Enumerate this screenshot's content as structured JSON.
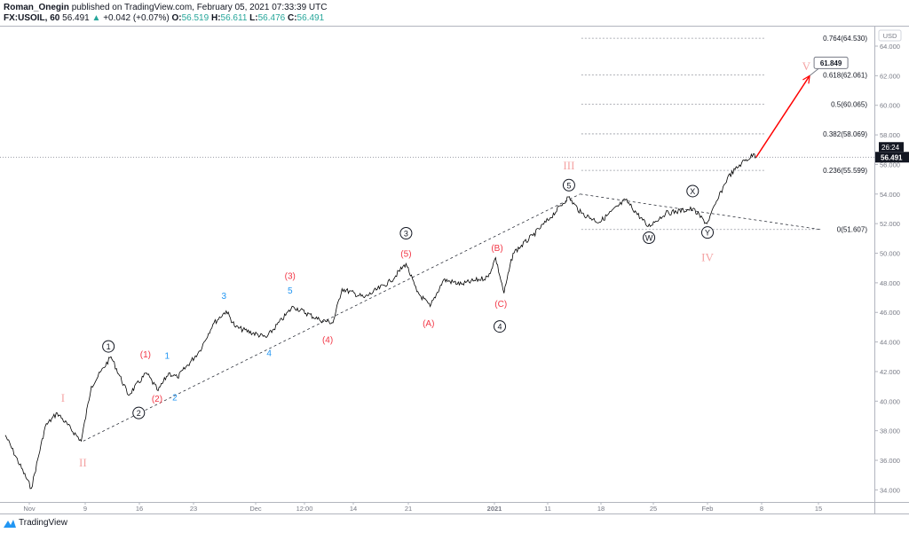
{
  "header": {
    "author": "Roman_Onegin",
    "published_text": "published on TradingView.com, February 05, 2021 07:33:39 UTC",
    "symbol": "FX:USOIL, 60",
    "last": "56.491",
    "change": "+0.042 (+0.07%)",
    "o_label": "O:",
    "o": "56.519",
    "h_label": "H:",
    "h": "56.611",
    "l_label": "L:",
    "l": "56.476",
    "c_label": "C:",
    "c": "56.491",
    "up_color": "#26a69a"
  },
  "footer": {
    "brand": "TradingView"
  },
  "chart_data": {
    "type": "line",
    "title": "",
    "currency": "USD",
    "ylim": [
      33.4,
      65.2
    ],
    "y_ticks": [
      "34.000",
      "36.000",
      "38.000",
      "40.000",
      "42.000",
      "44.000",
      "46.000",
      "48.000",
      "50.000",
      "52.000",
      "54.000",
      "56.000",
      "58.000",
      "60.000",
      "62.000",
      "64.000"
    ],
    "x_ticks": [
      {
        "label": "Nov",
        "date": "2020-11-02T00:00"
      },
      {
        "label": "9",
        "date": "2020-11-09T00:00"
      },
      {
        "label": "16",
        "date": "2020-11-16T00:00"
      },
      {
        "label": "23",
        "date": "2020-11-23T00:00"
      },
      {
        "label": "Dec",
        "date": "2020-12-01T00:00"
      },
      {
        "label": "12:00",
        "date": "2020-12-07T12:00"
      },
      {
        "label": "14",
        "date": "2020-12-14T00:00"
      },
      {
        "label": "21",
        "date": "2020-12-21T00:00"
      },
      {
        "label": "2021",
        "date": "2021-01-01T00:00"
      },
      {
        "label": "11",
        "date": "2021-01-11T00:00"
      },
      {
        "label": "18",
        "date": "2021-01-18T00:00"
      },
      {
        "label": "25",
        "date": "2021-01-25T00:00"
      },
      {
        "label": "Feb",
        "date": "2021-02-01T00:00"
      },
      {
        "label": "8",
        "date": "2021-02-08T00:00"
      },
      {
        "label": "15",
        "date": "2021-02-15T00:00"
      }
    ],
    "price_series": [
      [
        "2020-10-30T00:00",
        37.7
      ],
      [
        "2020-11-02T06:00",
        34.1
      ],
      [
        "2020-11-04T00:00",
        38.3
      ],
      [
        "2020-11-05T12:00",
        39.2
      ],
      [
        "2020-11-08T12:00",
        37.3
      ],
      [
        "2020-11-09T19:00",
        41.0
      ],
      [
        "2020-11-12T08:00",
        43.0
      ],
      [
        "2020-11-14T14:00",
        40.4
      ],
      [
        "2020-11-16T22:00",
        41.9
      ],
      [
        "2020-11-18T10:00",
        40.7
      ],
      [
        "2020-11-19T19:00",
        41.9
      ],
      [
        "2020-11-20T22:00",
        41.6
      ],
      [
        "2020-11-23T19:00",
        43.4
      ],
      [
        "2020-11-25T12:00",
        45.2
      ],
      [
        "2020-11-27T05:00",
        46.1
      ],
      [
        "2020-11-28T10:00",
        45.0
      ],
      [
        "2020-12-02T10:00",
        44.3
      ],
      [
        "2020-12-06T00:00",
        46.4
      ],
      [
        "2020-12-09T12:00",
        45.5
      ],
      [
        "2020-12-11T07:00",
        45.3
      ],
      [
        "2020-12-12T12:00",
        47.6
      ],
      [
        "2020-12-15T10:00",
        47.0
      ],
      [
        "2020-12-18T17:00",
        48.1
      ],
      [
        "2020-12-20T17:00",
        49.3
      ],
      [
        "2020-12-22T02:00",
        47.4
      ],
      [
        "2020-12-23T19:00",
        46.4
      ],
      [
        "2020-12-25T12:00",
        48.2
      ],
      [
        "2020-12-27T19:00",
        47.9
      ],
      [
        "2020-12-31T05:00",
        48.4
      ],
      [
        "2021-01-01T05:00",
        49.7
      ],
      [
        "2021-01-02T19:00",
        47.3
      ],
      [
        "2021-01-04T12:00",
        50.0
      ],
      [
        "2021-01-08T05:00",
        51.2
      ],
      [
        "2021-01-11T08:00",
        52.4
      ],
      [
        "2021-01-13T17:00",
        53.8
      ],
      [
        "2021-01-15T10:00",
        52.7
      ],
      [
        "2021-01-17T19:00",
        52.1
      ],
      [
        "2021-01-21T07:00",
        53.6
      ],
      [
        "2021-01-24T07:00",
        51.8
      ],
      [
        "2021-01-26T14:00",
        52.7
      ],
      [
        "2021-01-30T02:00",
        53.0
      ],
      [
        "2021-01-31T22:00",
        52.0
      ],
      [
        "2021-02-02T07:00",
        53.6
      ],
      [
        "2021-02-03T14:00",
        55.1
      ],
      [
        "2021-02-05T10:00",
        56.1
      ],
      [
        "2021-02-07T02:00",
        56.7
      ],
      [
        "2021-02-07T07:00",
        56.491
      ]
    ],
    "projection": {
      "from": [
        "2021-02-07T07:00",
        56.491
      ],
      "to": [
        "2021-02-13T22:00",
        62.0
      ],
      "label": "61.849",
      "color": "#ff0000"
    },
    "fib_levels": [
      {
        "label": "0.764(64.530)",
        "price": 64.53
      },
      {
        "label": "0.618(62.061)",
        "price": 62.061
      },
      {
        "label": "0.5(60.065)",
        "price": 60.065
      },
      {
        "label": "0.382(58.069)",
        "price": 58.069
      },
      {
        "label": "0.236(55.599)",
        "price": 55.599
      },
      {
        "label": "0(51.607)",
        "price": 51.607
      }
    ],
    "fib_range": {
      "start": "2021-01-15T10:00",
      "end": "2021-02-08T12:00",
      "zero_end": "2021-02-15T06:00"
    },
    "trendlines": [
      {
        "from": [
          "2020-11-08T18:00",
          37.3
        ],
        "to": [
          "2021-01-15T06:00",
          54.0
        ]
      },
      {
        "from": [
          "2021-01-15T06:00",
          54.0
        ],
        "to": [
          "2021-02-15T06:00",
          51.6
        ]
      }
    ],
    "current_price": {
      "label": "56.491",
      "price": 56.491,
      "countdown": "26:24"
    },
    "wave_labels": [
      {
        "label": "I",
        "style": "roman",
        "date": "2020-11-06T05:00",
        "price": 40.3
      },
      {
        "label": "II",
        "style": "roman",
        "date": "2020-11-08T17:00",
        "price": 35.9
      },
      {
        "label": "III",
        "style": "roman",
        "date": "2021-01-13T19:00",
        "price": 56.0
      },
      {
        "label": "IV",
        "style": "roman",
        "date": "2021-02-01T00:00",
        "price": 49.8
      },
      {
        "label": "V",
        "style": "roman",
        "date": "2021-02-13T12:00",
        "price": 62.7
      },
      {
        "label": "1",
        "style": "circle",
        "date": "2020-11-12T00:00",
        "price": 43.7
      },
      {
        "label": "2",
        "style": "circle",
        "date": "2020-11-15T22:00",
        "price": 39.2
      },
      {
        "label": "3",
        "style": "circle",
        "date": "2020-12-20T17:00",
        "price": 51.35
      },
      {
        "label": "4",
        "style": "circle",
        "date": "2021-01-02T00:00",
        "price": 45.05
      },
      {
        "label": "5",
        "style": "circle",
        "date": "2021-01-13T19:00",
        "price": 54.6
      },
      {
        "label": "W",
        "style": "circle",
        "date": "2021-01-24T10:00",
        "price": 51.05
      },
      {
        "label": "X",
        "style": "circle",
        "date": "2021-01-30T02:00",
        "price": 54.2
      },
      {
        "label": "Y",
        "style": "circle",
        "date": "2021-02-01T00:00",
        "price": 51.4
      },
      {
        "label": "(1)",
        "style": "paren",
        "date": "2020-11-16T19:00",
        "price": 43.2
      },
      {
        "label": "(2)",
        "style": "paren",
        "date": "2020-11-18T07:00",
        "price": 40.2
      },
      {
        "label": "(3)",
        "style": "paren",
        "date": "2020-12-05T14:00",
        "price": 48.5
      },
      {
        "label": "(4)",
        "style": "paren",
        "date": "2020-12-10T14:00",
        "price": 44.2
      },
      {
        "label": "(5)",
        "style": "paren",
        "date": "2020-12-20T17:00",
        "price": 50.0
      },
      {
        "label": "(A)",
        "style": "paren",
        "date": "2020-12-23T14:00",
        "price": 45.3
      },
      {
        "label": "(B)",
        "style": "paren",
        "date": "2021-01-01T12:00",
        "price": 50.4
      },
      {
        "label": "(C)",
        "style": "paren",
        "date": "2021-01-02T05:00",
        "price": 46.6
      },
      {
        "label": "1",
        "style": "minor",
        "date": "2020-11-19T14:00",
        "price": 43.1
      },
      {
        "label": "2",
        "style": "minor",
        "date": "2020-11-20T14:00",
        "price": 40.3
      },
      {
        "label": "3",
        "style": "minor",
        "date": "2020-11-26T22:00",
        "price": 47.15
      },
      {
        "label": "4",
        "style": "minor",
        "date": "2020-12-02T19:00",
        "price": 43.3
      },
      {
        "label": "5",
        "style": "minor",
        "date": "2020-12-05T14:00",
        "price": 47.5
      }
    ],
    "colors": {
      "roman": "#f4a3a3",
      "paren": "#f23645",
      "minor": "#2196f3",
      "circle": "#131722",
      "series": "#000000",
      "projection": "#ff0000"
    }
  }
}
